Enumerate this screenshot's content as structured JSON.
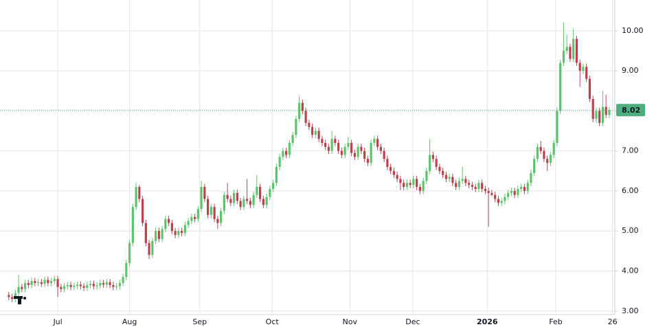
{
  "chart_data": {
    "type": "candlestick",
    "up_color": "#5cc46a",
    "down_color": "#b8424e",
    "last_price_color": "#4caf7d",
    "grid": true,
    "xlim": [
      -17.7,
      170.7
    ],
    "ylim": [
      2.91,
      10.77
    ],
    "xticks": [
      {
        "value": 0,
        "label": "Jul"
      },
      {
        "value": 22,
        "label": "Aug"
      },
      {
        "value": 43.5,
        "label": "Sep"
      },
      {
        "value": 65.7,
        "label": "Oct"
      },
      {
        "value": 89.5,
        "label": "Nov"
      },
      {
        "value": 108.8,
        "label": "Dec"
      },
      {
        "value": 131.6,
        "label": "2026"
      },
      {
        "value": 152.6,
        "label": "Feb"
      },
      {
        "value": 170,
        "label": "26"
      }
    ],
    "yticks": [
      {
        "value": 3,
        "label": "3.00"
      },
      {
        "value": 4,
        "label": "4.00"
      },
      {
        "value": 5,
        "label": "5.00"
      },
      {
        "value": 6,
        "label": "6.00"
      },
      {
        "value": 7,
        "label": "7.00"
      },
      {
        "value": 8,
        "label": "8.00"
      },
      {
        "value": 9,
        "label": "9.00"
      },
      {
        "value": 10,
        "label": "10.00"
      }
    ],
    "last_price": 8.02,
    "x": [
      -15,
      -14,
      -13,
      -12,
      -11,
      -10,
      -9,
      -8,
      -7,
      -6,
      -5,
      -4,
      -3,
      -2,
      -1,
      0,
      1,
      2,
      3,
      4,
      5,
      6,
      7,
      8,
      9,
      10,
      11,
      12,
      13,
      14,
      15,
      16,
      17,
      18,
      19,
      20,
      21,
      22,
      23,
      24,
      25,
      26,
      27,
      28,
      29,
      30,
      31,
      32,
      33,
      34,
      35,
      36,
      37,
      38,
      39,
      40,
      41,
      42,
      43,
      44,
      45,
      46,
      47,
      48,
      49,
      50,
      51,
      52,
      53,
      54,
      55,
      56,
      57,
      58,
      59,
      60,
      61,
      62,
      63,
      64,
      65,
      66,
      67,
      68,
      69,
      70,
      71,
      72,
      73,
      74,
      75,
      76,
      77,
      78,
      79,
      80,
      81,
      82,
      83,
      84,
      85,
      86,
      87,
      88,
      89,
      90,
      91,
      92,
      93,
      94,
      95,
      96,
      97,
      98,
      99,
      100,
      101,
      102,
      103,
      104,
      105,
      106,
      107,
      108,
      109,
      110,
      111,
      112,
      113,
      114,
      115,
      116,
      117,
      118,
      119,
      120,
      121,
      122,
      123,
      124,
      125,
      126,
      127,
      128,
      129,
      130,
      131,
      132,
      133,
      134,
      135,
      136,
      137,
      138,
      139,
      140,
      141,
      142,
      143,
      144,
      145,
      146,
      147,
      148,
      149,
      150,
      151,
      152,
      153,
      154,
      155,
      156,
      157,
      158,
      159,
      160,
      161,
      162,
      163,
      164,
      165,
      166,
      167,
      168,
      169
    ],
    "open": [
      3.4,
      3.35,
      3.3,
      3.45,
      3.6,
      3.55,
      3.7,
      3.65,
      3.75,
      3.7,
      3.72,
      3.68,
      3.78,
      3.7,
      3.75,
      3.8,
      3.6,
      3.55,
      3.62,
      3.65,
      3.6,
      3.63,
      3.66,
      3.62,
      3.58,
      3.65,
      3.68,
      3.62,
      3.64,
      3.7,
      3.66,
      3.72,
      3.65,
      3.6,
      3.62,
      3.7,
      3.85,
      4.2,
      4.7,
      5.6,
      6.1,
      5.8,
      5.2,
      4.7,
      4.4,
      4.75,
      5.0,
      4.8,
      5.05,
      5.3,
      5.2,
      5.0,
      4.9,
      5.0,
      4.95,
      5.15,
      5.25,
      5.35,
      5.3,
      5.55,
      6.1,
      5.8,
      5.4,
      5.6,
      5.3,
      5.2,
      5.5,
      5.9,
      5.8,
      5.7,
      5.95,
      5.75,
      5.6,
      5.8,
      5.75,
      5.65,
      5.9,
      6.1,
      5.8,
      5.65,
      5.85,
      6.05,
      6.2,
      6.6,
      6.85,
      7.0,
      6.9,
      7.2,
      7.4,
      7.8,
      8.2,
      8.0,
      7.7,
      7.6,
      7.4,
      7.5,
      7.3,
      7.2,
      7.1,
      7.0,
      7.3,
      7.2,
      7.0,
      6.9,
      7.1,
      7.2,
      6.95,
      6.85,
      7.1,
      7.0,
      6.8,
      6.7,
      7.2,
      7.3,
      7.1,
      7.0,
      6.8,
      6.6,
      6.5,
      6.4,
      6.3,
      6.2,
      6.1,
      6.2,
      6.15,
      6.3,
      6.1,
      6.0,
      6.25,
      6.5,
      6.9,
      6.8,
      6.6,
      6.5,
      6.4,
      6.3,
      6.35,
      6.2,
      6.1,
      6.25,
      6.3,
      6.2,
      6.15,
      6.1,
      6.05,
      6.2,
      6.05,
      6.0,
      5.95,
      5.9,
      5.8,
      5.7,
      5.75,
      5.85,
      5.95,
      6.0,
      5.9,
      6.05,
      6.1,
      6.0,
      6.2,
      6.45,
      6.8,
      7.1,
      7.0,
      6.8,
      6.7,
      6.9,
      7.2,
      8.0,
      9.2,
      9.5,
      9.6,
      9.3,
      9.8,
      9.2,
      9.0,
      9.1,
      8.8,
      8.3,
      7.8,
      8.0,
      7.7,
      8.1,
      7.9
    ],
    "high": [
      3.48,
      3.43,
      3.53,
      3.9,
      3.68,
      3.78,
      3.78,
      3.83,
      3.83,
      3.8,
      3.8,
      3.86,
      3.86,
      3.83,
      3.88,
      3.88,
      3.68,
      3.7,
      3.73,
      3.73,
      3.71,
      3.74,
      3.74,
      3.7,
      3.73,
      3.76,
      3.76,
      3.72,
      3.78,
      3.78,
      3.8,
      3.8,
      3.73,
      3.7,
      3.78,
      3.93,
      4.28,
      4.78,
      5.68,
      6.2,
      6.15,
      5.88,
      5.28,
      4.78,
      4.83,
      5.08,
      5.08,
      5.13,
      5.38,
      5.38,
      5.28,
      5.08,
      5.08,
      5.08,
      5.23,
      5.33,
      5.43,
      5.43,
      5.63,
      6.25,
      6.18,
      5.88,
      5.68,
      5.68,
      5.38,
      5.58,
      5.98,
      6.2,
      5.88,
      6.03,
      6.03,
      5.83,
      5.88,
      6.3,
      5.83,
      5.98,
      6.4,
      6.18,
      5.88,
      5.93,
      6.13,
      6.28,
      6.68,
      6.93,
      7.08,
      7.08,
      7.28,
      7.48,
      7.88,
      8.38,
      8.28,
      8.08,
      7.78,
      7.68,
      7.58,
      7.58,
      7.38,
      7.28,
      7.18,
      7.5,
      7.38,
      7.28,
      7.08,
      7.18,
      7.35,
      7.28,
      7.03,
      7.18,
      7.18,
      7.08,
      6.88,
      7.28,
      7.38,
      7.38,
      7.18,
      7.08,
      6.88,
      6.68,
      6.58,
      6.48,
      6.38,
      6.28,
      6.28,
      6.28,
      6.38,
      6.38,
      6.18,
      6.33,
      6.58,
      7.3,
      6.98,
      6.88,
      6.68,
      6.58,
      6.48,
      6.43,
      6.43,
      6.28,
      6.33,
      6.6,
      6.38,
      6.28,
      6.23,
      6.18,
      6.28,
      6.28,
      6.13,
      6.08,
      6.03,
      5.98,
      5.88,
      5.83,
      5.93,
      6.03,
      6.08,
      6.08,
      6.13,
      6.18,
      6.18,
      6.28,
      6.53,
      6.88,
      7.18,
      7.25,
      7.08,
      6.88,
      6.98,
      7.28,
      8.08,
      9.28,
      10.2,
      9.9,
      9.68,
      10.05,
      9.88,
      9.28,
      9.18,
      9.18,
      8.88,
      8.38,
      8.08,
      8.08,
      8.5,
      8.4,
      8.1
    ],
    "low": [
      3.27,
      3.22,
      3.22,
      3.37,
      3.47,
      3.47,
      3.57,
      3.57,
      3.62,
      3.62,
      3.6,
      3.6,
      3.62,
      3.62,
      3.67,
      3.35,
      3.47,
      3.47,
      3.54,
      3.52,
      3.52,
      3.55,
      3.54,
      3.5,
      3.5,
      3.57,
      3.54,
      3.54,
      3.56,
      3.58,
      3.58,
      3.57,
      3.52,
      3.52,
      3.54,
      3.62,
      3.77,
      4.12,
      4.62,
      5.52,
      5.72,
      5.12,
      4.62,
      4.3,
      4.32,
      4.67,
      4.72,
      4.72,
      4.97,
      5.12,
      4.92,
      4.82,
      4.82,
      4.87,
      4.87,
      5.07,
      5.17,
      5.22,
      5.22,
      5.47,
      5.72,
      5.32,
      5.32,
      5.22,
      5.05,
      5.12,
      5.42,
      5.72,
      5.62,
      5.62,
      5.67,
      5.52,
      5.52,
      5.67,
      5.57,
      5.57,
      5.82,
      5.72,
      5.57,
      5.57,
      5.77,
      5.97,
      6.12,
      6.52,
      6.77,
      6.82,
      6.82,
      7.12,
      7.32,
      7.72,
      7.92,
      7.62,
      7.52,
      7.32,
      7.32,
      7.22,
      7.12,
      7.02,
      6.92,
      6.92,
      7.12,
      6.92,
      6.82,
      6.82,
      7.02,
      6.87,
      6.77,
      6.77,
      6.92,
      6.72,
      6.62,
      6.62,
      7.12,
      7.02,
      6.92,
      6.72,
      6.52,
      6.42,
      6.32,
      6.22,
      6.02,
      6.02,
      6.02,
      6.07,
      6.07,
      6.02,
      5.92,
      5.92,
      6.17,
      6.42,
      6.72,
      6.52,
      6.42,
      6.32,
      6.22,
      6.22,
      6.12,
      6.02,
      6.02,
      6.17,
      6.12,
      6.07,
      6.02,
      5.97,
      5.97,
      5.97,
      5.92,
      5.1,
      5.87,
      5.72,
      5.62,
      5.62,
      5.67,
      5.77,
      5.87,
      5.82,
      5.82,
      5.97,
      5.92,
      5.92,
      6.12,
      6.37,
      6.72,
      6.92,
      6.72,
      6.5,
      6.62,
      6.82,
      7.12,
      7.92,
      9.12,
      9.42,
      9.22,
      9.22,
      9.12,
      8.6,
      8.92,
      8.72,
      8.22,
      7.72,
      7.7,
      7.62,
      7.62,
      7.82,
      7.82
    ],
    "close": [
      3.35,
      3.3,
      3.45,
      3.6,
      3.55,
      3.7,
      3.65,
      3.75,
      3.7,
      3.72,
      3.68,
      3.78,
      3.7,
      3.75,
      3.8,
      3.6,
      3.55,
      3.62,
      3.65,
      3.6,
      3.63,
      3.66,
      3.62,
      3.58,
      3.65,
      3.68,
      3.62,
      3.64,
      3.7,
      3.66,
      3.72,
      3.65,
      3.6,
      3.62,
      3.7,
      3.85,
      4.2,
      4.7,
      5.6,
      6.1,
      5.8,
      5.2,
      4.7,
      4.4,
      4.75,
      5.0,
      4.8,
      5.05,
      5.3,
      5.2,
      5.0,
      4.9,
      5.0,
      4.95,
      5.15,
      5.25,
      5.35,
      5.3,
      5.55,
      6.1,
      5.8,
      5.4,
      5.6,
      5.3,
      5.2,
      5.5,
      5.9,
      5.8,
      5.7,
      5.95,
      5.75,
      5.6,
      5.8,
      5.75,
      5.65,
      5.9,
      6.1,
      5.8,
      5.65,
      5.85,
      6.05,
      6.2,
      6.6,
      6.85,
      7.0,
      6.9,
      7.2,
      7.4,
      7.8,
      8.2,
      8.0,
      7.7,
      7.6,
      7.4,
      7.5,
      7.3,
      7.2,
      7.1,
      7.0,
      7.3,
      7.2,
      7.0,
      6.9,
      7.1,
      7.2,
      6.95,
      6.85,
      7.1,
      7.0,
      6.8,
      6.7,
      7.2,
      7.3,
      7.1,
      7.0,
      6.8,
      6.6,
      6.5,
      6.4,
      6.3,
      6.2,
      6.1,
      6.2,
      6.15,
      6.3,
      6.1,
      6.0,
      6.25,
      6.5,
      6.9,
      6.8,
      6.6,
      6.5,
      6.4,
      6.3,
      6.35,
      6.2,
      6.1,
      6.25,
      6.3,
      6.2,
      6.15,
      6.1,
      6.05,
      6.2,
      6.05,
      6.0,
      5.95,
      5.9,
      5.8,
      5.7,
      5.75,
      5.85,
      5.95,
      6.0,
      5.9,
      6.05,
      6.1,
      6.0,
      6.2,
      6.45,
      6.8,
      7.1,
      7.0,
      6.8,
      6.7,
      6.9,
      7.2,
      8.0,
      9.2,
      9.5,
      9.6,
      9.3,
      9.8,
      9.2,
      9.0,
      9.1,
      8.8,
      8.3,
      7.8,
      8.0,
      7.7,
      8.1,
      7.9,
      8.02
    ]
  }
}
